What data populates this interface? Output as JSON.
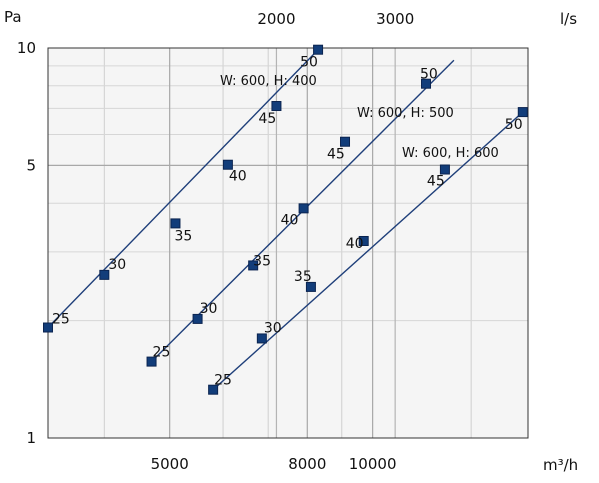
{
  "chart_data": {
    "type": "line",
    "x_scale": "log",
    "y_scale": "log",
    "xlim": [
      3300,
      17000
    ],
    "ylim": [
      1,
      10
    ],
    "x_unit_label": "m³/h",
    "y_unit_label": "Pa",
    "top_axis_unit_label": "l/s",
    "x_tick_labels": [
      {
        "value": 5000,
        "label": "5000"
      },
      {
        "value": 8000,
        "label": "8000"
      },
      {
        "value": 10000,
        "label": "10000"
      }
    ],
    "top_tick_labels": [
      {
        "value": 2000,
        "label": "2000"
      },
      {
        "value": 3000,
        "label": "3000"
      }
    ],
    "y_tick_labels": [
      {
        "value": 1,
        "label": "1"
      },
      {
        "value": 5,
        "label": "5"
      },
      {
        "value": 10,
        "label": "10"
      }
    ],
    "grid": true,
    "line_color": "#1f3f7a",
    "marker_color": "#123d7a",
    "series": [
      {
        "name": "W: 600, H: 400",
        "points": [
          {
            "x": 3300,
            "y": 1.92,
            "label": "25"
          },
          {
            "x": 4000,
            "y": 2.62,
            "label": "30"
          },
          {
            "x": 5100,
            "y": 3.55,
            "label": "35"
          },
          {
            "x": 6100,
            "y": 5.02,
            "label": "40"
          },
          {
            "x": 7200,
            "y": 7.1,
            "label": "45"
          },
          {
            "x": 8300,
            "y": 9.9,
            "label": "50"
          }
        ],
        "line_end": {
          "x": 8300,
          "y": 9.9
        }
      },
      {
        "name": "W: 600, H: 500",
        "points": [
          {
            "x": 4700,
            "y": 1.57,
            "label": "25"
          },
          {
            "x": 5500,
            "y": 2.02,
            "label": "30"
          },
          {
            "x": 6650,
            "y": 2.77,
            "label": "35"
          },
          {
            "x": 7900,
            "y": 3.88,
            "label": "40"
          },
          {
            "x": 9100,
            "y": 5.75,
            "label": "45"
          },
          {
            "x": 12000,
            "y": 8.1,
            "label": "50"
          }
        ],
        "line_end": {
          "x": 13200,
          "y": 9.3
        }
      },
      {
        "name": "W: 600, H: 600",
        "points": [
          {
            "x": 5800,
            "y": 1.33,
            "label": "25"
          },
          {
            "x": 6850,
            "y": 1.8,
            "label": "30"
          },
          {
            "x": 8100,
            "y": 2.44,
            "label": "35"
          },
          {
            "x": 9700,
            "y": 3.2,
            "label": "40"
          },
          {
            "x": 12800,
            "y": 4.88,
            "label": "45"
          },
          {
            "x": 16700,
            "y": 6.85,
            "label": "50"
          }
        ],
        "line_end": {
          "x": 16700,
          "y": 6.85
        }
      }
    ]
  }
}
